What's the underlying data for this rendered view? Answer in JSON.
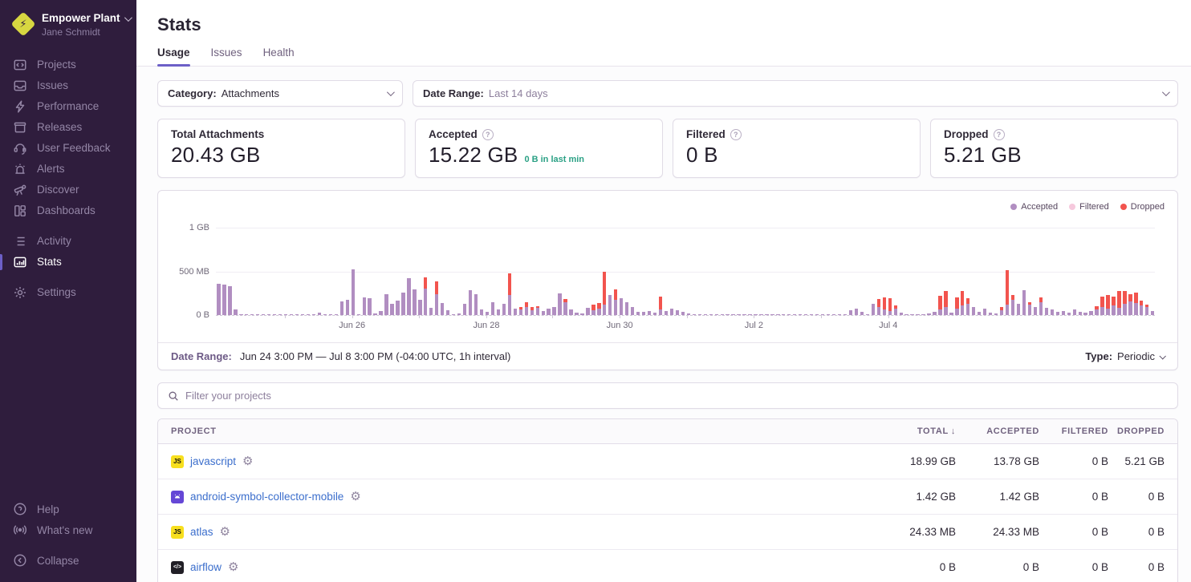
{
  "sidebar": {
    "org_name": "Empower Plant",
    "user_name": "Jane Schmidt",
    "primary": [
      {
        "label": "Projects"
      },
      {
        "label": "Issues"
      },
      {
        "label": "Performance"
      },
      {
        "label": "Releases"
      },
      {
        "label": "User Feedback"
      },
      {
        "label": "Alerts"
      },
      {
        "label": "Discover"
      },
      {
        "label": "Dashboards"
      }
    ],
    "secondary": [
      {
        "label": "Activity"
      },
      {
        "label": "Stats"
      },
      {
        "label": "Settings"
      }
    ],
    "footer": [
      {
        "label": "Help"
      },
      {
        "label": "What's new"
      }
    ],
    "collapse_label": "Collapse"
  },
  "header": {
    "title": "Stats",
    "tabs": [
      {
        "label": "Usage"
      },
      {
        "label": "Issues"
      },
      {
        "label": "Health"
      }
    ]
  },
  "filters": {
    "category": {
      "label": "Category:",
      "value": "Attachments"
    },
    "date_range": {
      "label": "Date Range:",
      "value": "Last 14 days"
    }
  },
  "cards": [
    {
      "label": "Total Attachments",
      "value": "20.43 GB"
    },
    {
      "label": "Accepted",
      "value": "15.22 GB",
      "sub": "0 B in last min",
      "sub_color": "#2ba185"
    },
    {
      "label": "Filtered",
      "value": "0 B"
    },
    {
      "label": "Dropped",
      "value": "5.21 GB"
    }
  ],
  "chart_data": {
    "type": "bar",
    "stacked": true,
    "unit": "MB",
    "bucket_hours": 2,
    "grid": true,
    "legend_position": "top-right",
    "yticks": [
      "1 GB",
      "500 MB",
      "0 B"
    ],
    "ylim": [
      0,
      1000
    ],
    "xticks": [
      {
        "label": "Jun 26",
        "pos": 14.5
      },
      {
        "label": "Jun 28",
        "pos": 28.8
      },
      {
        "label": "Jun 30",
        "pos": 43.0
      },
      {
        "label": "Jul 2",
        "pos": 57.3
      },
      {
        "label": "Jul 4",
        "pos": 71.6
      }
    ],
    "series": [
      {
        "name": "Accepted",
        "color": "#b18ec1"
      },
      {
        "name": "Filtered",
        "color": "#f6c9dd"
      },
      {
        "name": "Dropped",
        "color": "#f2544e"
      }
    ],
    "bars": [
      [
        355,
        0
      ],
      [
        345,
        0
      ],
      [
        330,
        0
      ],
      [
        60,
        0
      ],
      [
        10,
        0
      ],
      [
        8,
        0
      ],
      [
        12,
        0
      ],
      [
        9,
        0
      ],
      [
        7,
        0
      ],
      [
        10,
        0
      ],
      [
        8,
        0
      ],
      [
        6,
        0
      ],
      [
        9,
        0
      ],
      [
        11,
        0
      ],
      [
        7,
        0
      ],
      [
        8,
        0
      ],
      [
        10,
        0
      ],
      [
        6,
        0
      ],
      [
        25,
        0
      ],
      [
        9,
        0
      ],
      [
        8,
        0
      ],
      [
        10,
        0
      ],
      [
        160,
        0
      ],
      [
        175,
        0
      ],
      [
        520,
        0
      ],
      [
        12,
        0
      ],
      [
        205,
        0
      ],
      [
        195,
        0
      ],
      [
        15,
        0
      ],
      [
        45,
        0
      ],
      [
        240,
        0
      ],
      [
        130,
        0
      ],
      [
        165,
        0
      ],
      [
        255,
        0
      ],
      [
        420,
        0
      ],
      [
        295,
        0
      ],
      [
        175,
        0
      ],
      [
        300,
        130
      ],
      [
        85,
        0
      ],
      [
        240,
        150
      ],
      [
        140,
        0
      ],
      [
        55,
        0
      ],
      [
        12,
        0
      ],
      [
        15,
        0
      ],
      [
        125,
        0
      ],
      [
        285,
        0
      ],
      [
        235,
        0
      ],
      [
        65,
        0
      ],
      [
        35,
        0
      ],
      [
        145,
        0
      ],
      [
        65,
        0
      ],
      [
        125,
        0
      ],
      [
        230,
        250
      ],
      [
        75,
        0
      ],
      [
        65,
        25
      ],
      [
        90,
        60
      ],
      [
        55,
        35
      ],
      [
        80,
        25
      ],
      [
        45,
        0
      ],
      [
        70,
        0
      ],
      [
        95,
        0
      ],
      [
        250,
        0
      ],
      [
        150,
        30
      ],
      [
        60,
        0
      ],
      [
        25,
        0
      ],
      [
        20,
        0
      ],
      [
        85,
        0
      ],
      [
        55,
        65
      ],
      [
        75,
        60
      ],
      [
        120,
        380
      ],
      [
        230,
        0
      ],
      [
        170,
        120
      ],
      [
        195,
        0
      ],
      [
        145,
        0
      ],
      [
        90,
        0
      ],
      [
        40,
        0
      ],
      [
        35,
        0
      ],
      [
        45,
        0
      ],
      [
        30,
        0
      ],
      [
        60,
        150
      ],
      [
        45,
        0
      ],
      [
        70,
        0
      ],
      [
        55,
        0
      ],
      [
        35,
        0
      ],
      [
        18,
        0
      ],
      [
        10,
        0
      ],
      [
        8,
        0
      ],
      [
        12,
        0
      ],
      [
        7,
        0
      ],
      [
        9,
        0
      ],
      [
        11,
        0
      ],
      [
        8,
        0
      ],
      [
        10,
        0
      ],
      [
        7,
        0
      ],
      [
        9,
        0
      ],
      [
        8,
        0
      ],
      [
        10,
        0
      ],
      [
        8,
        0
      ],
      [
        12,
        0
      ],
      [
        7,
        0
      ],
      [
        9,
        0
      ],
      [
        10,
        0
      ],
      [
        8,
        0
      ],
      [
        11,
        0
      ],
      [
        7,
        0
      ],
      [
        9,
        0
      ],
      [
        8,
        0
      ],
      [
        10,
        0
      ],
      [
        7,
        0
      ],
      [
        12,
        0
      ],
      [
        9,
        0
      ],
      [
        8,
        0
      ],
      [
        11,
        0
      ],
      [
        55,
        0
      ],
      [
        75,
        0
      ],
      [
        40,
        0
      ],
      [
        10,
        0
      ],
      [
        130,
        0
      ],
      [
        90,
        90
      ],
      [
        60,
        140
      ],
      [
        45,
        150
      ],
      [
        70,
        40
      ],
      [
        25,
        0
      ],
      [
        10,
        0
      ],
      [
        9,
        0
      ],
      [
        11,
        0
      ],
      [
        8,
        0
      ],
      [
        20,
        0
      ],
      [
        40,
        0
      ],
      [
        60,
        160
      ],
      [
        90,
        190
      ],
      [
        30,
        0
      ],
      [
        70,
        130
      ],
      [
        110,
        170
      ],
      [
        130,
        60
      ],
      [
        90,
        0
      ],
      [
        40,
        0
      ],
      [
        75,
        0
      ],
      [
        30,
        0
      ],
      [
        20,
        0
      ],
      [
        55,
        35
      ],
      [
        120,
        390
      ],
      [
        170,
        60
      ],
      [
        130,
        0
      ],
      [
        280,
        0
      ],
      [
        120,
        30
      ],
      [
        90,
        0
      ],
      [
        145,
        55
      ],
      [
        80,
        0
      ],
      [
        60,
        0
      ],
      [
        35,
        0
      ],
      [
        50,
        0
      ],
      [
        25,
        0
      ],
      [
        65,
        0
      ],
      [
        40,
        0
      ],
      [
        30,
        0
      ],
      [
        45,
        0
      ],
      [
        60,
        40
      ],
      [
        90,
        120
      ],
      [
        70,
        160
      ],
      [
        110,
        100
      ],
      [
        85,
        190
      ],
      [
        130,
        150
      ],
      [
        160,
        80
      ],
      [
        140,
        120
      ],
      [
        110,
        55
      ],
      [
        90,
        30
      ],
      [
        50,
        0
      ]
    ]
  },
  "chart_footer": {
    "label": "Date Range:",
    "value": "Jun 24 3:00 PM — Jul 8 3:00 PM (-04:00 UTC, 1h interval)",
    "type_label": "Type:",
    "type_value": "Periodic"
  },
  "projects_filter": {
    "placeholder": "Filter your projects"
  },
  "table": {
    "columns": [
      "PROJECT",
      "TOTAL",
      "ACCEPTED",
      "FILTERED",
      "DROPPED"
    ],
    "sort_column": "TOTAL",
    "sort_icon": "↓",
    "rows": [
      {
        "platform": "javascript",
        "badge": "JS",
        "name": "javascript",
        "total": "18.99 GB",
        "accepted": "13.78 GB",
        "filtered": "0 B",
        "dropped": "5.21 GB"
      },
      {
        "platform": "android",
        "badge": "",
        "name": "android-symbol-collector-mobile",
        "total": "1.42 GB",
        "accepted": "1.42 GB",
        "filtered": "0 B",
        "dropped": "0 B"
      },
      {
        "platform": "javascript",
        "badge": "JS",
        "name": "atlas",
        "total": "24.33 MB",
        "accepted": "24.33 MB",
        "filtered": "0 B",
        "dropped": "0 B"
      },
      {
        "platform": "code",
        "badge": "</>",
        "name": "airflow",
        "total": "0 B",
        "accepted": "0 B",
        "filtered": "0 B",
        "dropped": "0 B"
      }
    ]
  },
  "icons": {
    "gear": "⚙",
    "bolt": "⚡"
  }
}
